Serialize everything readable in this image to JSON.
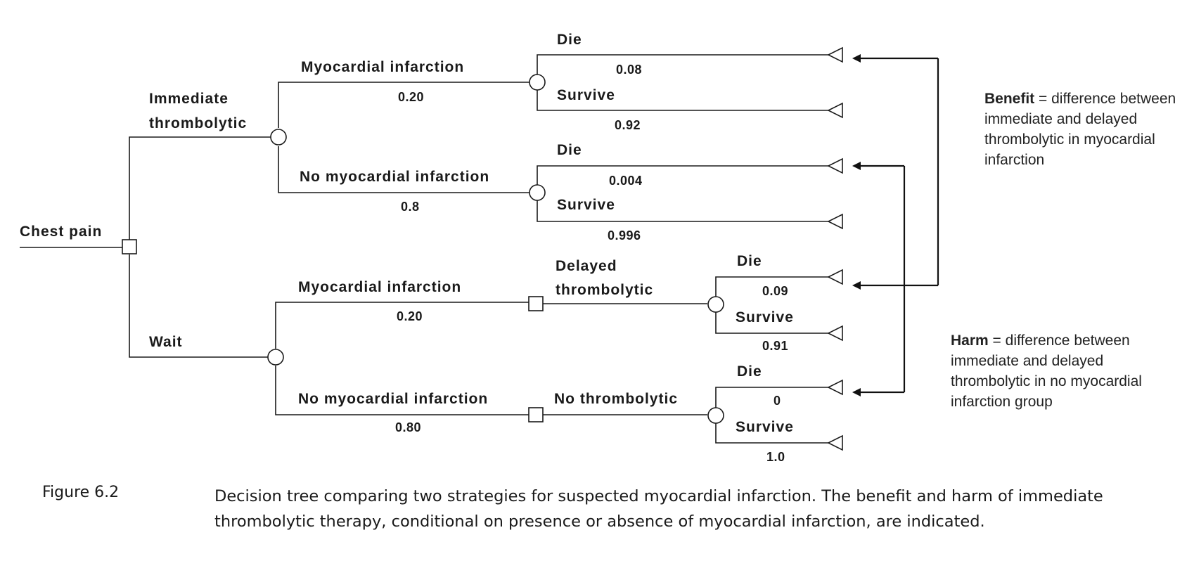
{
  "root": "Chest pain",
  "branches": {
    "immediate": "Immediate\nthrombolytic",
    "immediate_line1": "Immediate",
    "immediate_line2": "thrombolytic",
    "wait": "Wait",
    "mi": "Myocardial infarction",
    "no_mi": "No myocardial infarction",
    "delayed_line1": "Delayed",
    "delayed_line2": "thrombolytic",
    "no_thrombolytic": "No thrombolytic",
    "die": "Die",
    "survive": "Survive"
  },
  "probabilities": {
    "imm_mi": "0.20",
    "imm_no_mi": "0.8",
    "imm_mi_die": "0.08",
    "imm_mi_survive": "0.92",
    "imm_nomi_die": "0.004",
    "imm_nomi_survive": "0.996",
    "wait_mi": "0.20",
    "wait_no_mi": "0.80",
    "wait_mi_die": "0.09",
    "wait_mi_survive": "0.91",
    "wait_nomi_die": "0",
    "wait_nomi_survive": "1.0"
  },
  "annotations": {
    "benefit_term": "Benefit",
    "benefit_text": " = difference between immediate and delayed thrombolytic in myocardial infarction",
    "harm_term": "Harm",
    "harm_text": " = difference between immediate and delayed thrombolytic in no myocardial infarction group"
  },
  "caption": {
    "label": "Figure 6.2",
    "text": "Decision tree comparing two strategies for suspected myocardial infarction. The benefit and harm of immediate thrombolytic therapy, conditional on presence or absence of myocardial infarction, are indicated."
  }
}
